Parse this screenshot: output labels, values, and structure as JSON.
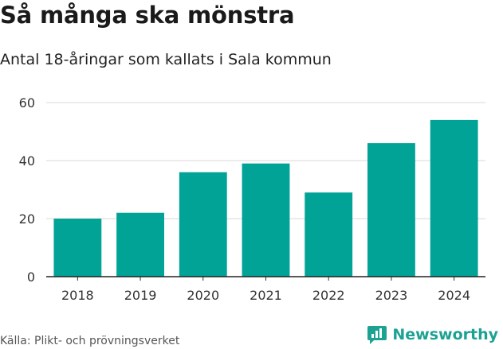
{
  "chart_data": {
    "type": "bar",
    "title": "Så många ska mönstra",
    "subtitle": "Antal 18-åringar som kallats i Sala kommun",
    "categories": [
      "2018",
      "2019",
      "2020",
      "2021",
      "2022",
      "2023",
      "2024"
    ],
    "values": [
      20,
      22,
      36,
      39,
      29,
      46,
      54
    ],
    "ylim": [
      0,
      60
    ],
    "yticks": [
      0,
      20,
      40,
      60
    ],
    "grid": true,
    "bar_color": "#00a396",
    "xlabel": "",
    "ylabel": ""
  },
  "footer": {
    "source": "Källa: Plikt- och prövningsverket",
    "brand_name": "Newsworthy",
    "brand_icon": "newsworthy-logo-icon",
    "brand_color": "#1ca293"
  }
}
